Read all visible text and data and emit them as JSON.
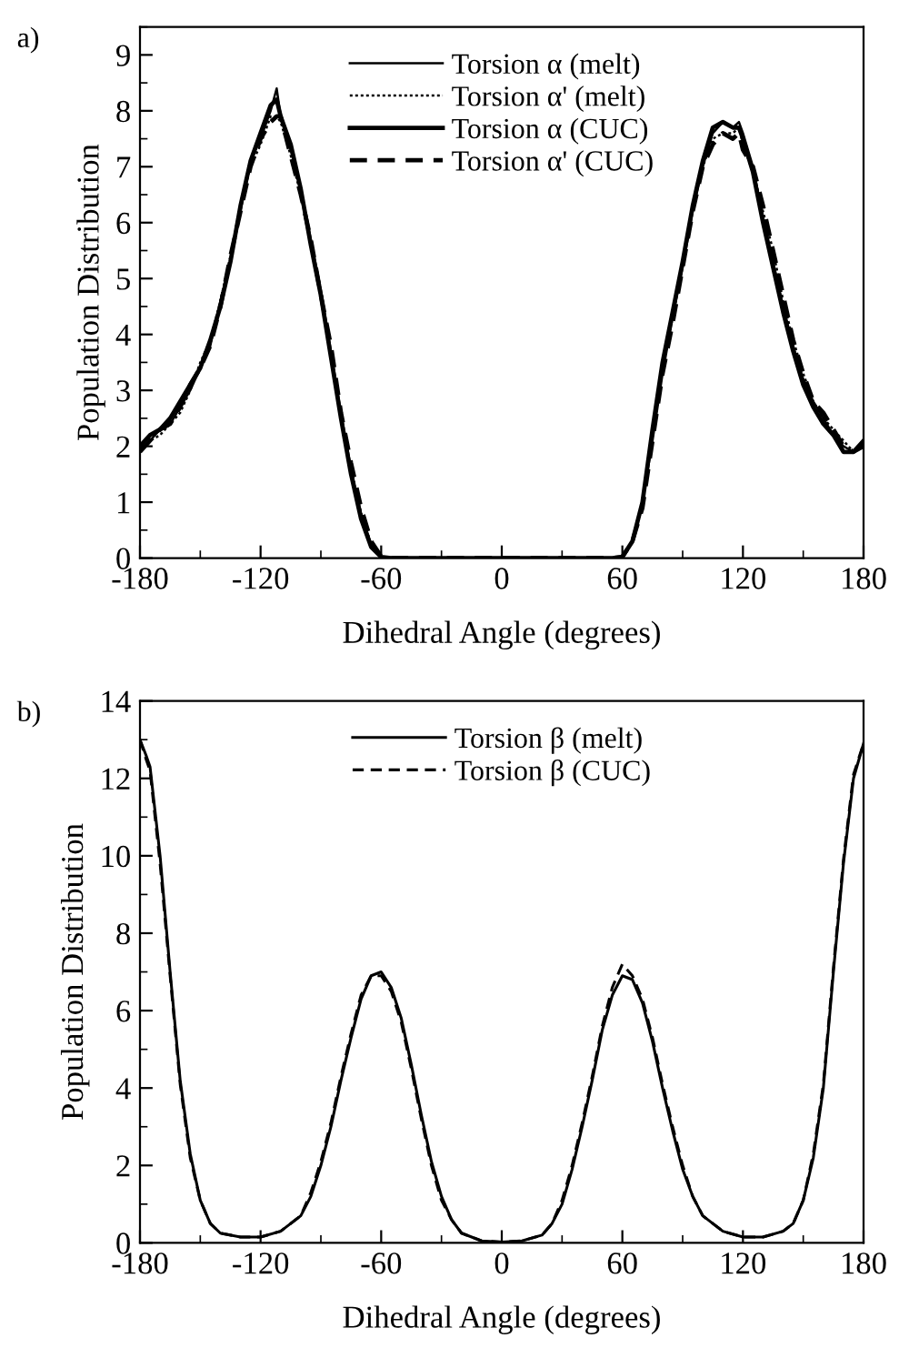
{
  "chart_data": [
    {
      "type": "line",
      "title": "a)",
      "xlabel": "Dihedral Angle (degrees)",
      "ylabel": "Population Distribution",
      "xlim": [
        -180,
        180
      ],
      "xticks": [
        -180,
        -120,
        -60,
        0,
        60,
        120,
        180
      ],
      "ylim": [
        0,
        9.5
      ],
      "yticks": [
        0,
        1,
        2,
        3,
        4,
        5,
        6,
        7,
        8,
        9
      ],
      "legend": "top",
      "grid": false,
      "marker": "none",
      "x": [
        -180,
        -175,
        -170,
        -165,
        -160,
        -155,
        -150,
        -145,
        -140,
        -135,
        -130,
        -125,
        -120,
        -115,
        -112,
        -110,
        -105,
        -100,
        -95,
        -90,
        -85,
        -80,
        -75,
        -70,
        -65,
        -60,
        -55,
        0,
        55,
        60,
        65,
        70,
        75,
        80,
        85,
        90,
        95,
        100,
        105,
        110,
        115,
        118,
        120,
        125,
        130,
        135,
        140,
        145,
        150,
        155,
        160,
        165,
        170,
        175,
        180
      ],
      "series": [
        {
          "name": "Torsion α (melt)",
          "color": "#000000",
          "line_style": "solid",
          "values": [
            1.9,
            2.1,
            2.3,
            2.4,
            2.7,
            3.0,
            3.4,
            3.8,
            4.6,
            5.3,
            6.2,
            7.1,
            7.5,
            8.0,
            8.4,
            7.9,
            7.3,
            6.6,
            5.7,
            4.8,
            3.7,
            2.6,
            1.6,
            0.8,
            0.25,
            0.02,
            0,
            0,
            0,
            0.02,
            0.3,
            1.0,
            2.1,
            3.3,
            4.3,
            5.2,
            6.2,
            7.0,
            7.6,
            7.8,
            7.7,
            7.8,
            7.6,
            7.0,
            6.1,
            5.3,
            4.5,
            3.8,
            3.2,
            2.8,
            2.5,
            2.2,
            2.0,
            1.9,
            2.0
          ]
        },
        {
          "name": "Torsion α' (melt)",
          "color": "#000000",
          "line_style": "dotted",
          "values": [
            1.9,
            2.1,
            2.2,
            2.4,
            2.6,
            3.0,
            3.5,
            3.9,
            4.6,
            5.4,
            6.3,
            7.0,
            7.4,
            7.9,
            7.9,
            7.8,
            7.2,
            6.5,
            5.6,
            4.7,
            3.6,
            2.5,
            1.6,
            0.8,
            0.25,
            0.02,
            0,
            0,
            0,
            0.02,
            0.3,
            1.0,
            2.2,
            3.4,
            4.3,
            5.3,
            6.3,
            7.0,
            7.5,
            7.6,
            7.6,
            7.7,
            7.4,
            6.9,
            6.2,
            5.5,
            4.6,
            3.9,
            3.3,
            2.8,
            2.5,
            2.3,
            2.1,
            1.9,
            2.0
          ]
        },
        {
          "name": "Torsion α (CUC)",
          "color": "#000000",
          "line_style": "solid",
          "values": [
            2.0,
            2.2,
            2.3,
            2.5,
            2.8,
            3.1,
            3.4,
            3.9,
            4.5,
            5.3,
            6.3,
            7.1,
            7.6,
            8.1,
            8.2,
            7.9,
            7.4,
            6.6,
            5.6,
            4.7,
            3.6,
            2.5,
            1.5,
            0.7,
            0.2,
            0.02,
            0,
            0,
            0,
            0.02,
            0.3,
            1.0,
            2.3,
            3.5,
            4.4,
            5.3,
            6.3,
            7.1,
            7.7,
            7.8,
            7.7,
            7.7,
            7.5,
            6.9,
            6.0,
            5.2,
            4.4,
            3.7,
            3.1,
            2.7,
            2.4,
            2.2,
            1.9,
            1.9,
            2.1
          ]
        },
        {
          "name": "Torsion α' (CUC)",
          "color": "#000000",
          "line_style": "dashed",
          "values": [
            1.9,
            2.1,
            2.3,
            2.4,
            2.7,
            3.1,
            3.4,
            3.8,
            4.5,
            5.4,
            6.2,
            7.0,
            7.5,
            7.8,
            7.9,
            7.9,
            7.2,
            6.5,
            5.7,
            4.7,
            3.8,
            2.6,
            1.7,
            0.9,
            0.3,
            0.03,
            0,
            0,
            0,
            0.02,
            0.3,
            0.9,
            2.1,
            3.3,
            4.2,
            5.2,
            6.2,
            7.0,
            7.4,
            7.6,
            7.5,
            7.6,
            7.3,
            7.0,
            6.3,
            5.5,
            4.7,
            3.9,
            3.3,
            2.8,
            2.6,
            2.3,
            2.0,
            1.9,
            2.0
          ]
        }
      ]
    },
    {
      "type": "line",
      "title": "b)",
      "xlabel": "Dihedral Angle (degrees)",
      "ylabel": "Population Distribution",
      "xlim": [
        -180,
        180
      ],
      "xticks": [
        -180,
        -120,
        -60,
        0,
        60,
        120,
        180
      ],
      "ylim": [
        0,
        14
      ],
      "yticks": [
        0,
        2,
        4,
        6,
        8,
        10,
        12,
        14
      ],
      "legend": "top",
      "grid": false,
      "marker": "none",
      "x": [
        -180,
        -177,
        -175,
        -170,
        -165,
        -160,
        -155,
        -150,
        -145,
        -140,
        -130,
        -120,
        -110,
        -100,
        -95,
        -90,
        -85,
        -80,
        -75,
        -70,
        -65,
        -60,
        -55,
        -50,
        -45,
        -40,
        -35,
        -30,
        -25,
        -20,
        -10,
        0,
        10,
        20,
        25,
        30,
        35,
        40,
        45,
        50,
        55,
        60,
        65,
        70,
        75,
        80,
        85,
        90,
        95,
        100,
        110,
        120,
        130,
        140,
        145,
        150,
        155,
        160,
        165,
        170,
        175,
        180
      ],
      "series": [
        {
          "name": "Torsion β (melt)",
          "color": "#000000",
          "line_style": "solid",
          "values": [
            13.0,
            12.6,
            12.3,
            10.0,
            7.0,
            4.2,
            2.3,
            1.1,
            0.5,
            0.25,
            0.15,
            0.15,
            0.3,
            0.7,
            1.2,
            2.0,
            3.0,
            4.2,
            5.3,
            6.3,
            6.9,
            7.0,
            6.6,
            5.8,
            4.6,
            3.3,
            2.1,
            1.2,
            0.6,
            0.25,
            0.05,
            0.02,
            0.05,
            0.2,
            0.5,
            1.0,
            1.9,
            3.0,
            4.2,
            5.5,
            6.4,
            6.9,
            6.8,
            6.2,
            5.2,
            4.0,
            2.9,
            1.9,
            1.2,
            0.7,
            0.3,
            0.15,
            0.15,
            0.3,
            0.5,
            1.1,
            2.2,
            4.0,
            7.0,
            9.8,
            12.0,
            12.9
          ]
        },
        {
          "name": "Torsion β (CUC)",
          "color": "#000000",
          "line_style": "dashed",
          "values": [
            13.0,
            12.5,
            12.2,
            9.8,
            6.9,
            4.1,
            2.2,
            1.1,
            0.5,
            0.25,
            0.15,
            0.15,
            0.3,
            0.7,
            1.3,
            2.1,
            3.1,
            4.3,
            5.4,
            6.4,
            6.9,
            6.9,
            6.5,
            5.7,
            4.5,
            3.2,
            2.0,
            1.1,
            0.6,
            0.25,
            0.05,
            0.02,
            0.05,
            0.2,
            0.5,
            1.1,
            2.0,
            3.1,
            4.3,
            5.6,
            6.6,
            7.2,
            6.9,
            6.3,
            5.3,
            4.1,
            3.0,
            2.0,
            1.2,
            0.7,
            0.3,
            0.15,
            0.15,
            0.3,
            0.5,
            1.1,
            2.3,
            4.1,
            7.1,
            9.9,
            12.1,
            12.9
          ]
        }
      ]
    }
  ]
}
